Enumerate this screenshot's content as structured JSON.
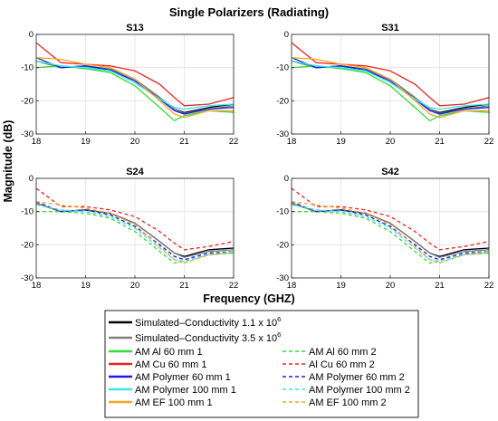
{
  "figure": {
    "title": "Single Polarizers (Radiating)",
    "xlabel": "Frequency (GHZ)",
    "ylabel": "Magnitude (dB)"
  },
  "legend": {
    "placement": "bottom-center",
    "entries": [
      {
        "key": "sim1",
        "label": "Simulated–Conductivity 1.1 x 10",
        "sup": "6",
        "color": "#000000",
        "dash": false
      },
      {
        "key": "sim35",
        "label": "Simulated–Conductivity 3.5 x 10",
        "sup": "6",
        "color": "#808080",
        "dash": false
      },
      {
        "key": "al1",
        "label": "AM Al 60 mm 1",
        "color": "#33dd33",
        "dash": false
      },
      {
        "key": "al2",
        "label": "AM Al 60 mm 2",
        "color": "#33dd33",
        "dash": true
      },
      {
        "key": "cu1",
        "label": "AM Cu 60 mm 1",
        "color": "#ee2222",
        "dash": false
      },
      {
        "key": "cu2",
        "label": "Al Cu 60 mm 2",
        "color": "#ee2222",
        "dash": true
      },
      {
        "key": "p601",
        "label": "AM Polymer 60 mm 1",
        "color": "#1a1aee",
        "dash": false
      },
      {
        "key": "p602",
        "label": "AM Polymer 60 mm 2",
        "color": "#1a1aee",
        "dash": true
      },
      {
        "key": "p1001",
        "label": "AM Polymer 100 mm 1",
        "color": "#33e8f0",
        "dash": false
      },
      {
        "key": "p1002",
        "label": "AM Polymer 100 mm 2",
        "color": "#33e8f0",
        "dash": true
      },
      {
        "key": "ef1",
        "label": "AM EF 100 mm 1",
        "color": "#f5a623",
        "dash": false
      },
      {
        "key": "ef2",
        "label": "AM EF 100 mm 2",
        "color": "#f5a623",
        "dash": true
      }
    ]
  },
  "chart_data": [
    {
      "type": "line",
      "title": "S13",
      "xlim": [
        18,
        22
      ],
      "ylim": [
        -30,
        0
      ],
      "xticks": [
        18,
        19,
        20,
        21,
        22
      ],
      "yticks": [
        0,
        -10,
        -20,
        -30
      ],
      "grid": true,
      "x": [
        18,
        18.5,
        19,
        19.5,
        20,
        20.5,
        20.8,
        21,
        21.5,
        22
      ],
      "series": [
        {
          "key": "sim1",
          "values": [
            -8,
            -10,
            -9.5,
            -10.5,
            -13.5,
            -19,
            -22.5,
            -23.5,
            -22,
            -21
          ]
        },
        {
          "key": "sim35",
          "values": [
            -8,
            -10,
            -9.6,
            -10.6,
            -13.5,
            -19,
            -22.5,
            -23.8,
            -22.5,
            -21.5
          ]
        },
        {
          "key": "al1",
          "values": [
            -10,
            -9.5,
            -10.3,
            -11.5,
            -15.5,
            -22,
            -26,
            -24.5,
            -23,
            -23.5
          ]
        },
        {
          "key": "cu1",
          "values": [
            -2.5,
            -8.5,
            -9,
            -9.5,
            -11,
            -15,
            -19,
            -21.5,
            -21,
            -19
          ]
        },
        {
          "key": "p601",
          "values": [
            -7,
            -10,
            -9.5,
            -10.8,
            -14,
            -19.5,
            -23,
            -24,
            -22.5,
            -22
          ]
        },
        {
          "key": "p1001",
          "values": [
            -8,
            -9.5,
            -10,
            -11,
            -14.5,
            -19.5,
            -22,
            -22.5,
            -21.5,
            -21
          ]
        },
        {
          "key": "ef1",
          "values": [
            -7,
            -7.5,
            -9,
            -10,
            -13.5,
            -20,
            -24,
            -25,
            -23,
            -23
          ]
        }
      ]
    },
    {
      "type": "line",
      "title": "S31",
      "xlim": [
        18,
        22
      ],
      "ylim": [
        -30,
        0
      ],
      "xticks": [
        18,
        19,
        20,
        21,
        22
      ],
      "yticks": [
        0,
        -10,
        -20,
        -30
      ],
      "grid": true,
      "x": [
        18,
        18.5,
        19,
        19.5,
        20,
        20.5,
        20.8,
        21,
        21.5,
        22
      ],
      "series": [
        {
          "key": "sim1",
          "values": [
            -8,
            -10,
            -9.5,
            -10.5,
            -13.5,
            -19,
            -22.5,
            -23.5,
            -22,
            -21
          ]
        },
        {
          "key": "sim35",
          "values": [
            -8,
            -10,
            -9.6,
            -10.6,
            -13.5,
            -19,
            -22.5,
            -23.8,
            -22.5,
            -21.5
          ]
        },
        {
          "key": "al1",
          "values": [
            -10,
            -9.5,
            -10.3,
            -11.5,
            -15.5,
            -22,
            -26,
            -24.5,
            -23,
            -23.5
          ]
        },
        {
          "key": "cu1",
          "values": [
            -2.5,
            -8.5,
            -9,
            -9.5,
            -11,
            -15,
            -19,
            -21.5,
            -21,
            -19
          ]
        },
        {
          "key": "p601",
          "values": [
            -7,
            -10,
            -9.5,
            -10.8,
            -14,
            -19.5,
            -23,
            -24,
            -22.5,
            -22
          ]
        },
        {
          "key": "p1001",
          "values": [
            -8,
            -9.5,
            -10,
            -11,
            -14.5,
            -19.5,
            -22,
            -22.5,
            -21.5,
            -21
          ]
        },
        {
          "key": "ef1",
          "values": [
            -7,
            -7.5,
            -9,
            -10,
            -13.5,
            -20,
            -24,
            -25,
            -23,
            -23
          ]
        }
      ]
    },
    {
      "type": "line",
      "title": "S24",
      "xlim": [
        18,
        22
      ],
      "ylim": [
        -30,
        0
      ],
      "xticks": [
        18,
        19,
        20,
        21,
        22
      ],
      "yticks": [
        0,
        -10,
        -20,
        -30
      ],
      "grid": true,
      "x": [
        18,
        18.5,
        19,
        19.5,
        20,
        20.5,
        20.8,
        21,
        21.5,
        22
      ],
      "series": [
        {
          "key": "sim1",
          "values": [
            -7.5,
            -10,
            -9.5,
            -10.5,
            -13.5,
            -19,
            -22.5,
            -23.5,
            -21.5,
            -21
          ]
        },
        {
          "key": "sim35",
          "values": [
            -7.5,
            -10,
            -9.6,
            -10.6,
            -13.5,
            -19,
            -22.5,
            -23.8,
            -22,
            -21.5
          ]
        },
        {
          "key": "al2",
          "values": [
            -10,
            -10,
            -10.5,
            -12,
            -16,
            -22,
            -25.5,
            -25,
            -23,
            -22.5
          ]
        },
        {
          "key": "cu2",
          "values": [
            -3,
            -8.5,
            -8.5,
            -9.5,
            -11.5,
            -16,
            -19.5,
            -21.5,
            -20.5,
            -19
          ]
        },
        {
          "key": "p602",
          "values": [
            -7,
            -10,
            -9.5,
            -11,
            -14.5,
            -20,
            -23.5,
            -24.5,
            -22.5,
            -22
          ]
        },
        {
          "key": "p1002",
          "values": [
            -8,
            -9.5,
            -10,
            -11.5,
            -15,
            -21,
            -24.5,
            -25,
            -23,
            -22
          ]
        },
        {
          "key": "ef2",
          "values": [
            -7,
            -8,
            -9,
            -10.5,
            -14,
            -20.5,
            -24.5,
            -25.5,
            -23,
            -22.5
          ]
        }
      ]
    },
    {
      "type": "line",
      "title": "S42",
      "xlim": [
        18,
        22
      ],
      "ylim": [
        -30,
        0
      ],
      "xticks": [
        18,
        19,
        20,
        21,
        22
      ],
      "yticks": [
        0,
        -10,
        -20,
        -30
      ],
      "grid": true,
      "x": [
        18,
        18.5,
        19,
        19.5,
        20,
        20.5,
        20.8,
        21,
        21.5,
        22
      ],
      "series": [
        {
          "key": "sim1",
          "values": [
            -7.5,
            -10,
            -9.5,
            -10.5,
            -13.5,
            -19,
            -22.5,
            -23.5,
            -21.5,
            -21
          ]
        },
        {
          "key": "sim35",
          "values": [
            -7.5,
            -10,
            -9.6,
            -10.6,
            -13.5,
            -19,
            -22.5,
            -23.8,
            -22,
            -21.5
          ]
        },
        {
          "key": "al2",
          "values": [
            -10,
            -10,
            -10.5,
            -12,
            -16,
            -22,
            -25.5,
            -25,
            -23,
            -22.5
          ]
        },
        {
          "key": "cu2",
          "values": [
            -3,
            -8.5,
            -8.5,
            -9.5,
            -11.5,
            -16,
            -19.5,
            -21.5,
            -20.5,
            -19
          ]
        },
        {
          "key": "p602",
          "values": [
            -7,
            -10,
            -9.5,
            -11,
            -14.5,
            -20,
            -23.5,
            -24.5,
            -22.5,
            -22
          ]
        },
        {
          "key": "p1002",
          "values": [
            -8,
            -9.5,
            -10,
            -11.5,
            -15,
            -21,
            -24.5,
            -25,
            -23,
            -22
          ]
        },
        {
          "key": "ef2",
          "values": [
            -7,
            -8,
            -9,
            -10.5,
            -14,
            -20.5,
            -24.5,
            -25.5,
            -23,
            -22.5
          ]
        }
      ]
    }
  ]
}
